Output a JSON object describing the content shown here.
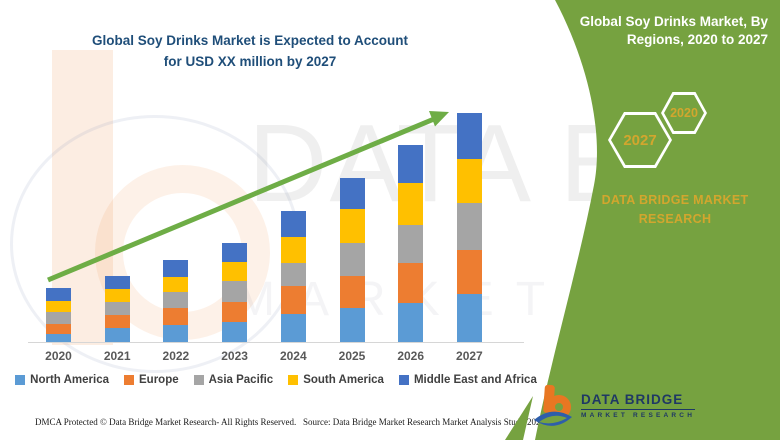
{
  "left_title": {
    "line1": "Global Soy Drinks Market is Expected to Account",
    "line2": "for USD XX million by 2027"
  },
  "right_panel": {
    "title_line1": "Global Soy Drinks Market, By",
    "title_line2": "Regions, 2020 to 2027",
    "hexagons": [
      {
        "label": "2027"
      },
      {
        "label": "2020"
      }
    ],
    "brand_line1": "DATA BRIDGE MARKET",
    "brand_line2": "RESEARCH",
    "logo": {
      "name": "DATA BRIDGE",
      "subtitle": "MARKET RESEARCH"
    },
    "colors": {
      "panel_green": "#76A240",
      "accent_gold": "#D2A62E",
      "logo_navy": "#1F3864",
      "logo_orange": "#E87722",
      "logo_blue": "#2E5EAA"
    }
  },
  "watermark": {
    "text_primary": "DATA B",
    "text_secondary": "MARKET RE"
  },
  "chart_data": {
    "type": "bar",
    "stacked": true,
    "title": "Global Soy Drinks Market is Expected to Account for USD XX million by 2027",
    "xlabel": "",
    "ylabel": "",
    "value_units": "relative units (chart shows USD XX million placeholder, no value axis)",
    "grid": false,
    "legend_position": "bottom",
    "trend_arrow": true,
    "trend_arrow_color": "#6EAD46",
    "categories": [
      "2020",
      "2021",
      "2022",
      "2023",
      "2024",
      "2025",
      "2026",
      "2027"
    ],
    "series": [
      {
        "name": "North America",
        "color": "#5B9BD5",
        "values": [
          8,
          14,
          17,
          20,
          28,
          34,
          39,
          48
        ]
      },
      {
        "name": "Europe",
        "color": "#ED7D31",
        "values": [
          10,
          13,
          17,
          20,
          28,
          32,
          40,
          44
        ]
      },
      {
        "name": "Asia Pacific",
        "color": "#A5A5A5",
        "values": [
          12,
          13,
          16,
          21,
          23,
          33,
          38,
          47
        ]
      },
      {
        "name": "South America",
        "color": "#FFC000",
        "values": [
          11,
          13,
          15,
          19,
          26,
          34,
          42,
          44
        ]
      },
      {
        "name": "Middle East and Africa",
        "color": "#4472C4",
        "values": [
          13,
          13,
          17,
          19,
          26,
          31,
          38,
          46
        ]
      }
    ],
    "totals": [
      54,
      66,
      82,
      99,
      131,
      164,
      197,
      229
    ]
  },
  "footer": {
    "left": "DMCA Protected © Data Bridge Market Research- All Rights Reserved.",
    "right": "Source: Data Bridge Market Research Market Analysis Study 2020"
  }
}
